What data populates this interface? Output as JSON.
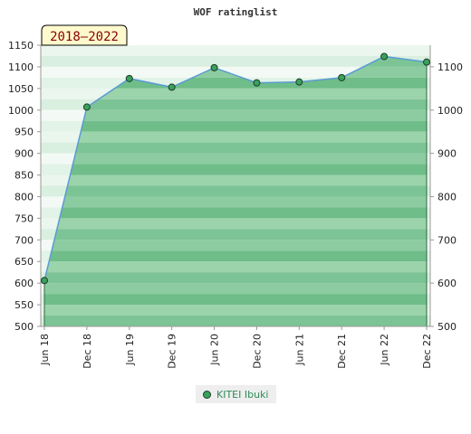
{
  "chart_data": {
    "type": "area",
    "title": "WOF ratinglist",
    "badge": "2018–2022",
    "categories": [
      "Jun 18",
      "Dec 18",
      "Jun 19",
      "Dec 19",
      "Jun 20",
      "Dec 20",
      "Jun 21",
      "Dec 21",
      "Jun 22",
      "Dec 22"
    ],
    "series": [
      {
        "name": "KITEI Ibuki",
        "values": [
          606,
          1007,
          1073,
          1053,
          1098,
          1063,
          1065,
          1075,
          1124,
          1111
        ]
      }
    ],
    "ylim": [
      500,
      1150
    ],
    "yticks_left": [
      500,
      550,
      600,
      650,
      700,
      750,
      800,
      850,
      900,
      950,
      1000,
      1050,
      1100,
      1150
    ],
    "yticks_right": [
      500,
      600,
      700,
      800,
      900,
      1000,
      1100
    ],
    "grid": true,
    "legend_position": "bottom-center",
    "colors": {
      "line": "#5b9bd5",
      "marker": "#3aa15a",
      "fill": "#7cc495",
      "badge_bg": "#fffacd"
    }
  }
}
